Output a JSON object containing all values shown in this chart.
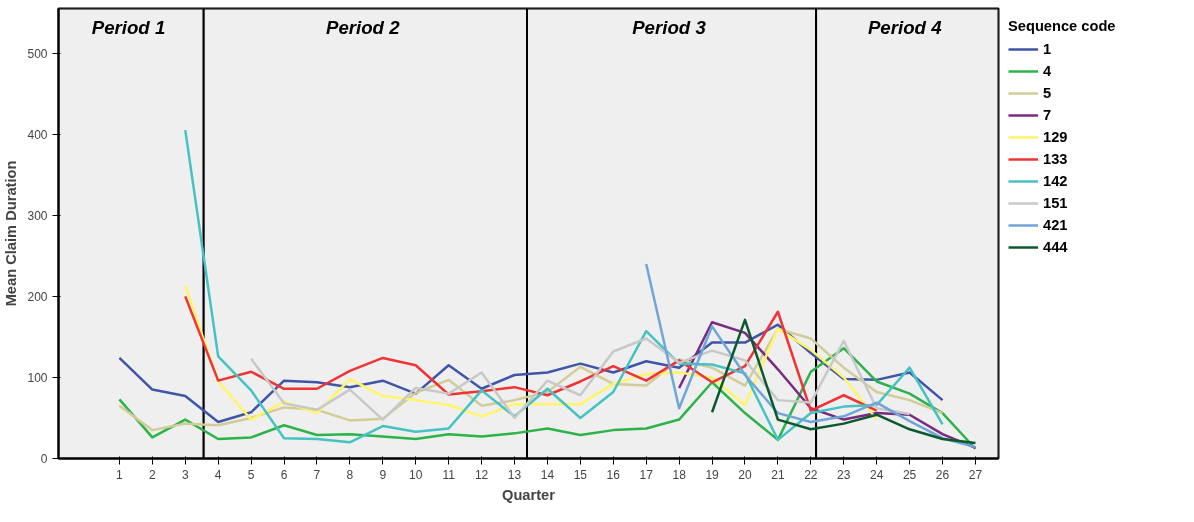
{
  "chart_data": {
    "type": "line",
    "xlabel": "Quarter",
    "ylabel": "Mean Claim Duration",
    "legend_title": "Sequence code",
    "legend": "right",
    "grid": false,
    "x": [
      1,
      2,
      3,
      4,
      5,
      6,
      7,
      8,
      9,
      10,
      11,
      12,
      13,
      14,
      15,
      16,
      17,
      18,
      19,
      20,
      21,
      22,
      23,
      24,
      25,
      26,
      27
    ],
    "xlim": [
      -0.85,
      27.7
    ],
    "xticks": [
      1,
      2,
      3,
      4,
      5,
      6,
      7,
      8,
      9,
      10,
      11,
      12,
      13,
      14,
      15,
      16,
      17,
      18,
      19,
      20,
      21,
      22,
      23,
      24,
      25,
      26,
      27
    ],
    "ylim": [
      0,
      555
    ],
    "yticks": [
      0,
      100,
      200,
      300,
      400,
      500
    ],
    "bands": [
      {
        "axis": "x",
        "from": -0.85,
        "to": 3.56,
        "label": "Period  1",
        "color": "#efefef"
      },
      {
        "axis": "x",
        "from": 3.56,
        "to": 13.38,
        "label": "Period  2",
        "color": "#efefef"
      },
      {
        "axis": "x",
        "from": 13.38,
        "to": 22.16,
        "label": "Period  3",
        "color": "#efefef"
      },
      {
        "axis": "x",
        "from": 22.16,
        "to": 27.7,
        "label": "Period  4",
        "color": "#efefef"
      }
    ],
    "series": [
      {
        "name": "1",
        "color": "#3f55a8",
        "values": [
          124,
          85,
          77,
          45,
          57,
          96,
          94,
          88,
          96,
          80,
          115,
          86,
          103,
          106,
          117,
          106,
          120,
          112,
          143,
          143,
          165,
          130,
          98,
          97,
          106,
          72,
          null
        ]
      },
      {
        "name": "4",
        "color": "#2db34a",
        "values": [
          73,
          26,
          48,
          24,
          26,
          41,
          29,
          30,
          27,
          24,
          30,
          27,
          31,
          37,
          29,
          35,
          37,
          48,
          94,
          56,
          23,
          107,
          136,
          95,
          80,
          56,
          12
        ]
      },
      {
        "name": "5",
        "color": "#d2cc96",
        "values": [
          65,
          35,
          43,
          41,
          50,
          63,
          60,
          47,
          49,
          81,
          97,
          65,
          72,
          82,
          113,
          92,
          90,
          122,
          112,
          90,
          160,
          148,
          112,
          82,
          72,
          56,
          null
        ]
      },
      {
        "name": "7",
        "color": "#7b2a82",
        "values": [
          null,
          null,
          null,
          null,
          null,
          null,
          null,
          null,
          null,
          null,
          null,
          null,
          null,
          null,
          null,
          null,
          null,
          87,
          168,
          155,
          110,
          62,
          48,
          56,
          54,
          30,
          13
        ]
      },
      {
        "name": "129",
        "color": "#fff566",
        "values": [
          null,
          null,
          213,
          95,
          48,
          70,
          56,
          98,
          77,
          72,
          66,
          52,
          67,
          67,
          67,
          92,
          104,
          106,
          100,
          66,
          160,
          134,
          100,
          48,
          null,
          null,
          null
        ]
      },
      {
        "name": "133",
        "color": "#f03434",
        "values": [
          null,
          null,
          200,
          96,
          107,
          86,
          86,
          108,
          124,
          115,
          79,
          83,
          88,
          78,
          95,
          114,
          96,
          121,
          94,
          114,
          181,
          59,
          78,
          59,
          null,
          null,
          null
        ]
      },
      {
        "name": "142",
        "color": "#44c2c4",
        "values": [
          null,
          null,
          405,
          126,
          84,
          25,
          24,
          20,
          40,
          33,
          37,
          84,
          52,
          86,
          50,
          82,
          157,
          117,
          116,
          105,
          23,
          56,
          64,
          66,
          112,
          42,
          null
        ]
      },
      {
        "name": "151",
        "color": "#c8c8c8",
        "values": [
          null,
          null,
          null,
          null,
          123,
          68,
          60,
          85,
          48,
          87,
          80,
          106,
          50,
          96,
          78,
          132,
          148,
          118,
          133,
          121,
          72,
          69,
          145,
          62,
          55,
          null,
          null
        ]
      },
      {
        "name": "421",
        "color": "#6fa5d8",
        "values": [
          null,
          null,
          null,
          null,
          null,
          null,
          null,
          null,
          null,
          null,
          null,
          null,
          null,
          null,
          null,
          null,
          240,
          62,
          163,
          103,
          56,
          45,
          52,
          69,
          46,
          25,
          14
        ]
      },
      {
        "name": "444",
        "color": "#0b5a2e",
        "values": [
          null,
          null,
          null,
          null,
          null,
          null,
          null,
          null,
          null,
          null,
          null,
          null,
          null,
          null,
          null,
          null,
          null,
          null,
          57,
          171,
          48,
          36,
          43,
          54,
          36,
          24,
          19
        ]
      }
    ]
  }
}
